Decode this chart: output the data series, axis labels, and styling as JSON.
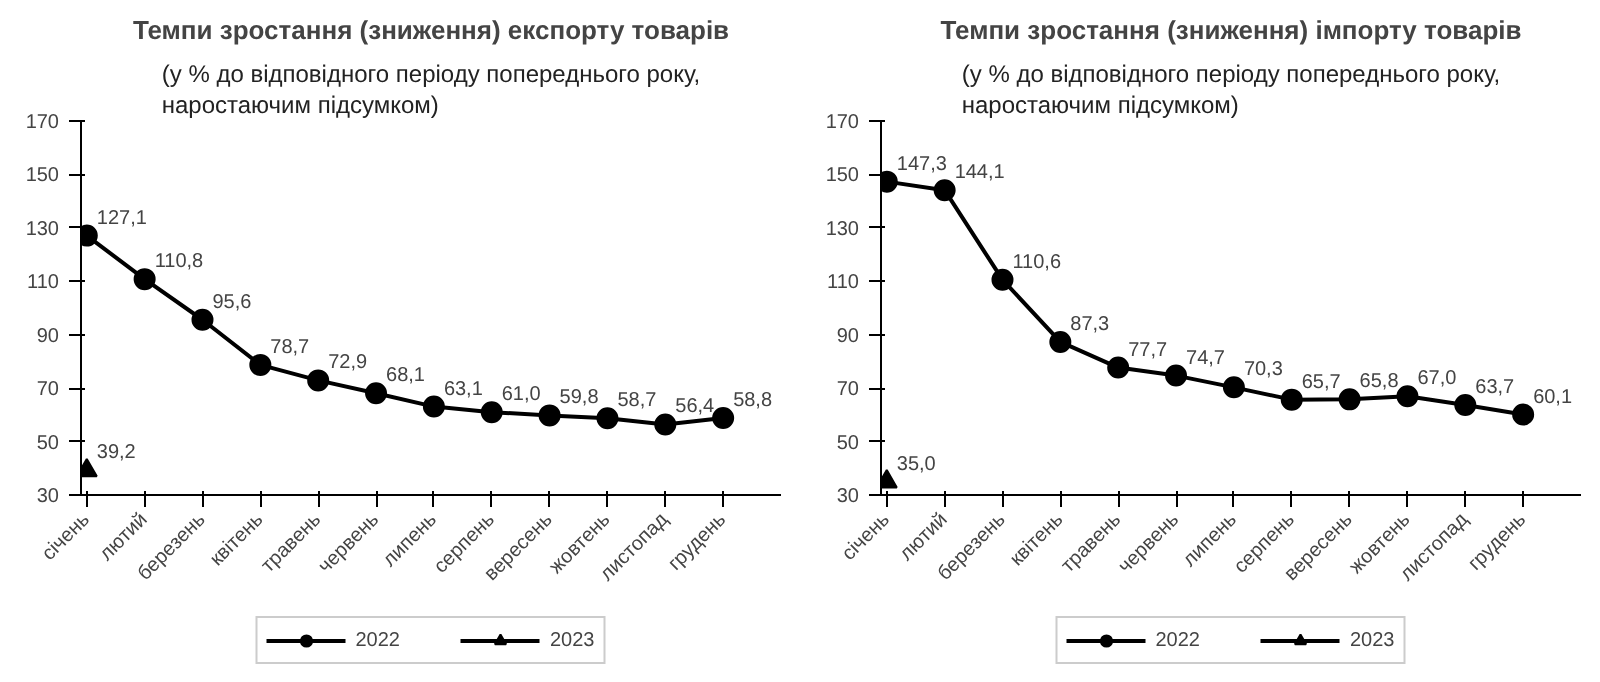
{
  "chart_data": [
    {
      "type": "line",
      "title": "Темпи зростання (зниження) експорту товарів",
      "subtitle": "(у % до відповідного періоду попереднього року, наростаючим підсумком)",
      "categories": [
        "січень",
        "лютий",
        "березень",
        "квітень",
        "травень",
        "червень",
        "липень",
        "серпень",
        "вересень",
        "жовтень",
        "листопад",
        "грудень"
      ],
      "series": [
        {
          "name": "2022",
          "color": "#000000",
          "marker": "circle",
          "values": [
            127.1,
            110.8,
            95.6,
            78.7,
            72.9,
            68.1,
            63.1,
            61.0,
            59.8,
            58.7,
            56.4,
            58.8
          ],
          "value_labels": [
            "127,1",
            "110,8",
            "95,6",
            "78,7",
            "72,9",
            "68,1",
            "63,1",
            "61,0",
            "59,8",
            "58,7",
            "56,4",
            "58,8"
          ]
        },
        {
          "name": "2023",
          "color": "#000000",
          "marker": "triangle",
          "values": [
            39.2,
            null,
            null,
            null,
            null,
            null,
            null,
            null,
            null,
            null,
            null,
            null
          ],
          "value_labels": [
            "39,2",
            null,
            null,
            null,
            null,
            null,
            null,
            null,
            null,
            null,
            null,
            null
          ]
        }
      ],
      "ylim": [
        30,
        170
      ],
      "yticks": [
        30,
        50,
        70,
        90,
        110,
        130,
        150,
        170
      ],
      "grid": false,
      "legend": "bottom",
      "line_style": "solid"
    },
    {
      "type": "line",
      "title": "Темпи зростання (зниження) імпорту товарів",
      "subtitle": "(у % до відповідного періоду попереднього року, наростаючим підсумком)",
      "categories": [
        "січень",
        "лютий",
        "березень",
        "квітень",
        "травень",
        "червень",
        "липень",
        "серпень",
        "вересень",
        "жовтень",
        "листопад",
        "грудень"
      ],
      "series": [
        {
          "name": "2022",
          "color": "#000000",
          "marker": "circle",
          "values": [
            147.3,
            144.1,
            110.6,
            87.3,
            77.7,
            74.7,
            70.3,
            65.7,
            65.8,
            67.0,
            63.7,
            60.1
          ],
          "value_labels": [
            "147,3",
            "144,1",
            "110,6",
            "87,3",
            "77,7",
            "74,7",
            "70,3",
            "65,7",
            "65,8",
            "67,0",
            "63,7",
            "60,1"
          ]
        },
        {
          "name": "2023",
          "color": "#000000",
          "marker": "triangle",
          "values": [
            35.0,
            null,
            null,
            null,
            null,
            null,
            null,
            null,
            null,
            null,
            null,
            null
          ],
          "value_labels": [
            "35,0",
            null,
            null,
            null,
            null,
            null,
            null,
            null,
            null,
            null,
            null,
            null
          ]
        }
      ],
      "ylim": [
        30,
        170
      ],
      "yticks": [
        30,
        50,
        70,
        90,
        110,
        130,
        150,
        170
      ],
      "grid": false,
      "legend": "bottom",
      "line_style": "solid"
    }
  ]
}
